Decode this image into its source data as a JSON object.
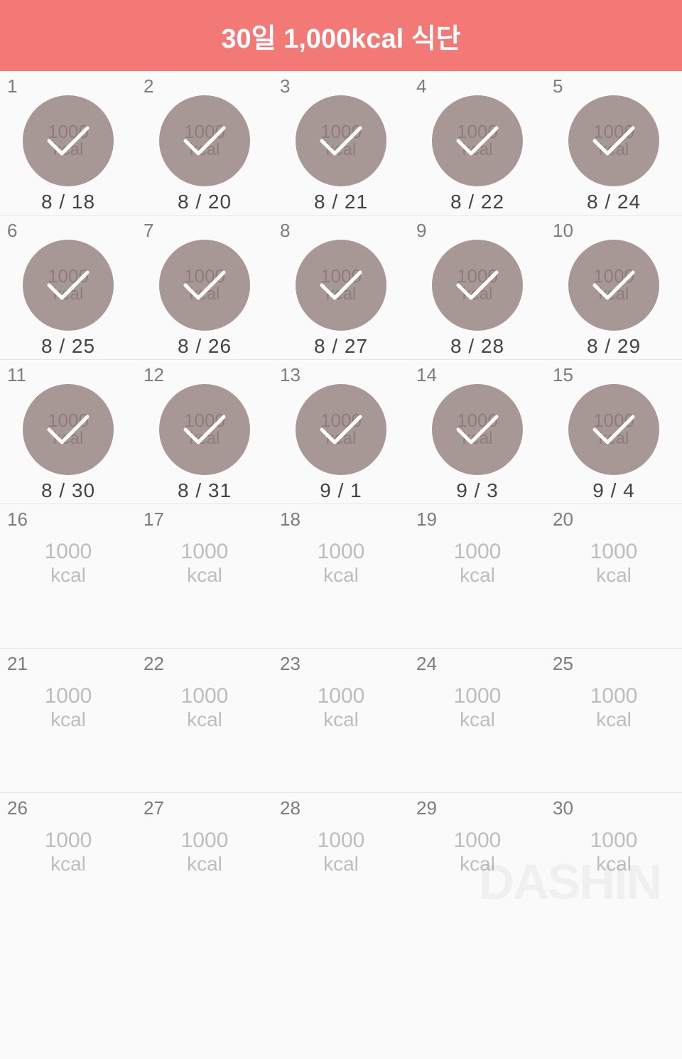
{
  "header": {
    "title": "30일 1,000kcal 식단",
    "bg_color": "#f37976",
    "text_color": "#ffffff"
  },
  "style": {
    "circle_bg": "#a79896",
    "circle_text": "#8e7d7a",
    "check_color": "#ffffff",
    "day_num_color": "#7d7d7d",
    "date_color": "#444444",
    "plain_text_color": "#bdbdbd",
    "border_color": "#e6e6e6",
    "page_bg": "#fafafa"
  },
  "badge": {
    "value": "1000",
    "unit": "kcal"
  },
  "days": [
    {
      "n": "1",
      "completed": true,
      "date": "8 / 18"
    },
    {
      "n": "2",
      "completed": true,
      "date": "8 / 20"
    },
    {
      "n": "3",
      "completed": true,
      "date": "8 / 21"
    },
    {
      "n": "4",
      "completed": true,
      "date": "8 / 22"
    },
    {
      "n": "5",
      "completed": true,
      "date": "8 / 24"
    },
    {
      "n": "6",
      "completed": true,
      "date": "8 / 25"
    },
    {
      "n": "7",
      "completed": true,
      "date": "8 / 26"
    },
    {
      "n": "8",
      "completed": true,
      "date": "8 / 27"
    },
    {
      "n": "9",
      "completed": true,
      "date": "8 / 28"
    },
    {
      "n": "10",
      "completed": true,
      "date": "8 / 29"
    },
    {
      "n": "11",
      "completed": true,
      "date": "8 / 30"
    },
    {
      "n": "12",
      "completed": true,
      "date": "8 / 31"
    },
    {
      "n": "13",
      "completed": true,
      "date": "9 / 1"
    },
    {
      "n": "14",
      "completed": true,
      "date": "9 / 3"
    },
    {
      "n": "15",
      "completed": true,
      "date": "9 / 4"
    },
    {
      "n": "16",
      "completed": false,
      "date": ""
    },
    {
      "n": "17",
      "completed": false,
      "date": ""
    },
    {
      "n": "18",
      "completed": false,
      "date": ""
    },
    {
      "n": "19",
      "completed": false,
      "date": ""
    },
    {
      "n": "20",
      "completed": false,
      "date": ""
    },
    {
      "n": "21",
      "completed": false,
      "date": ""
    },
    {
      "n": "22",
      "completed": false,
      "date": ""
    },
    {
      "n": "23",
      "completed": false,
      "date": ""
    },
    {
      "n": "24",
      "completed": false,
      "date": ""
    },
    {
      "n": "25",
      "completed": false,
      "date": ""
    },
    {
      "n": "26",
      "completed": false,
      "date": ""
    },
    {
      "n": "27",
      "completed": false,
      "date": ""
    },
    {
      "n": "28",
      "completed": false,
      "date": ""
    },
    {
      "n": "29",
      "completed": false,
      "date": ""
    },
    {
      "n": "30",
      "completed": false,
      "date": ""
    }
  ],
  "watermark": "DASHIN"
}
